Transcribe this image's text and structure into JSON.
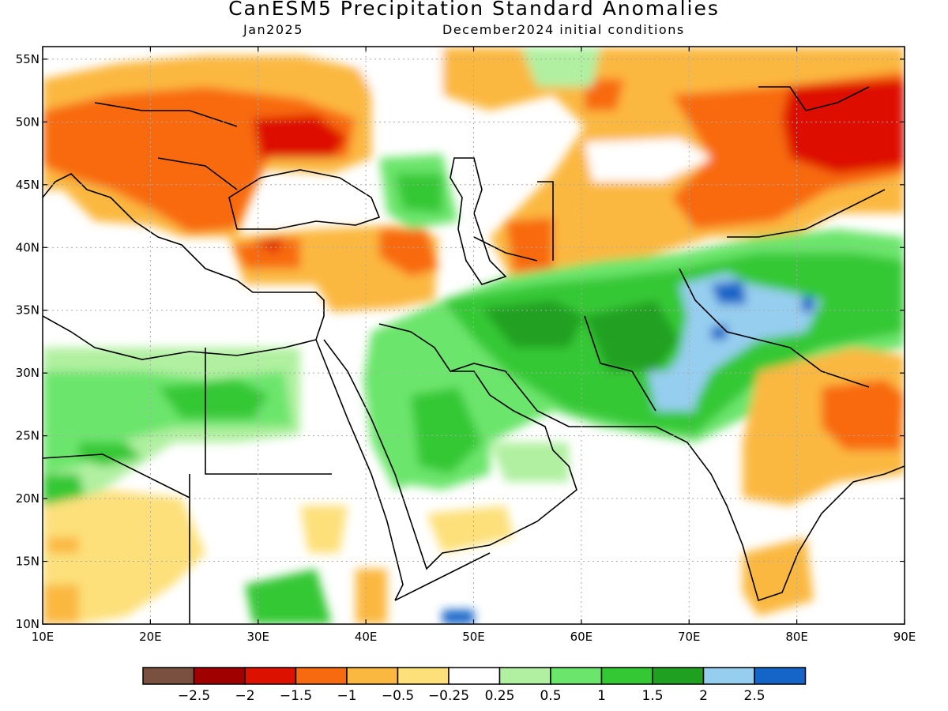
{
  "title": "CanESM5 Precipitation Standard Anomalies",
  "subtitle_left": "Jan2025",
  "subtitle_right": "December2024 initial conditions",
  "map": {
    "lon_range": [
      10,
      90
    ],
    "lat_range": [
      10,
      56
    ],
    "lon_ticks": [
      "10E",
      "20E",
      "30E",
      "40E",
      "50E",
      "60E",
      "70E",
      "80E",
      "90E"
    ],
    "lat_ticks": [
      "10N",
      "15N",
      "20N",
      "25N",
      "30N",
      "35N",
      "40N",
      "45N",
      "50N",
      "55N"
    ],
    "anomaly_regions": [
      {
        "level": -1,
        "lon": 22,
        "lat": 48,
        "rx": 14,
        "ry": 6
      },
      {
        "level": -1.5,
        "lon": 33,
        "lat": 48,
        "rx": 7,
        "ry": 3.5
      },
      {
        "level": -2,
        "lon": 34,
        "lat": 48.5,
        "rx": 3,
        "ry": 1.5
      },
      {
        "level": -1,
        "lon": 35,
        "lat": 40,
        "rx": 9,
        "ry": 2.5
      },
      {
        "level": -1.5,
        "lon": 42,
        "lat": 40,
        "rx": 2.5,
        "ry": 2
      },
      {
        "level": -1,
        "lon": 80,
        "lat": 45,
        "rx": 12,
        "ry": 6
      },
      {
        "level": -2,
        "lon": 85,
        "lat": 49,
        "rx": 5,
        "ry": 3
      },
      {
        "level": -1,
        "lon": 85,
        "lat": 25,
        "rx": 6,
        "ry": 4
      },
      {
        "level": 0.5,
        "lon": 55,
        "lat": 31,
        "rx": 10,
        "ry": 6
      },
      {
        "level": 1.5,
        "lon": 66,
        "lat": 33,
        "rx": 9,
        "ry": 5
      },
      {
        "level": 2,
        "lon": 72,
        "lat": 33,
        "rx": 3,
        "ry": 4
      },
      {
        "level": 2.5,
        "lon": 73,
        "lat": 36,
        "rx": 1.5,
        "ry": 1
      },
      {
        "level": 0.5,
        "lon": 20,
        "lat": 26,
        "rx": 10,
        "ry": 5
      },
      {
        "level": 1.5,
        "lon": 17,
        "lat": 24,
        "rx": 3,
        "ry": 1.5
      },
      {
        "level": 1,
        "lon": 45,
        "lat": 25,
        "rx": 4,
        "ry": 4
      },
      {
        "level": 2.5,
        "lon": 48.5,
        "lat": 10.5,
        "rx": 1.5,
        "ry": 0.5
      }
    ]
  },
  "colorbar": {
    "colors": [
      "#7a5040",
      "#a00000",
      "#dd1100",
      "#f86a10",
      "#fbb840",
      "#fde07a",
      "#ffffff",
      "#b0f0a0",
      "#6ce56c",
      "#34c834",
      "#20a020",
      "#96cef0",
      "#1565c8"
    ],
    "labels": [
      "-2.5",
      "-2",
      "-1.5",
      "-1",
      "-0.5",
      "-0.25",
      "0.25",
      "0.5",
      "1",
      "1.5",
      "2",
      "2.5"
    ]
  }
}
